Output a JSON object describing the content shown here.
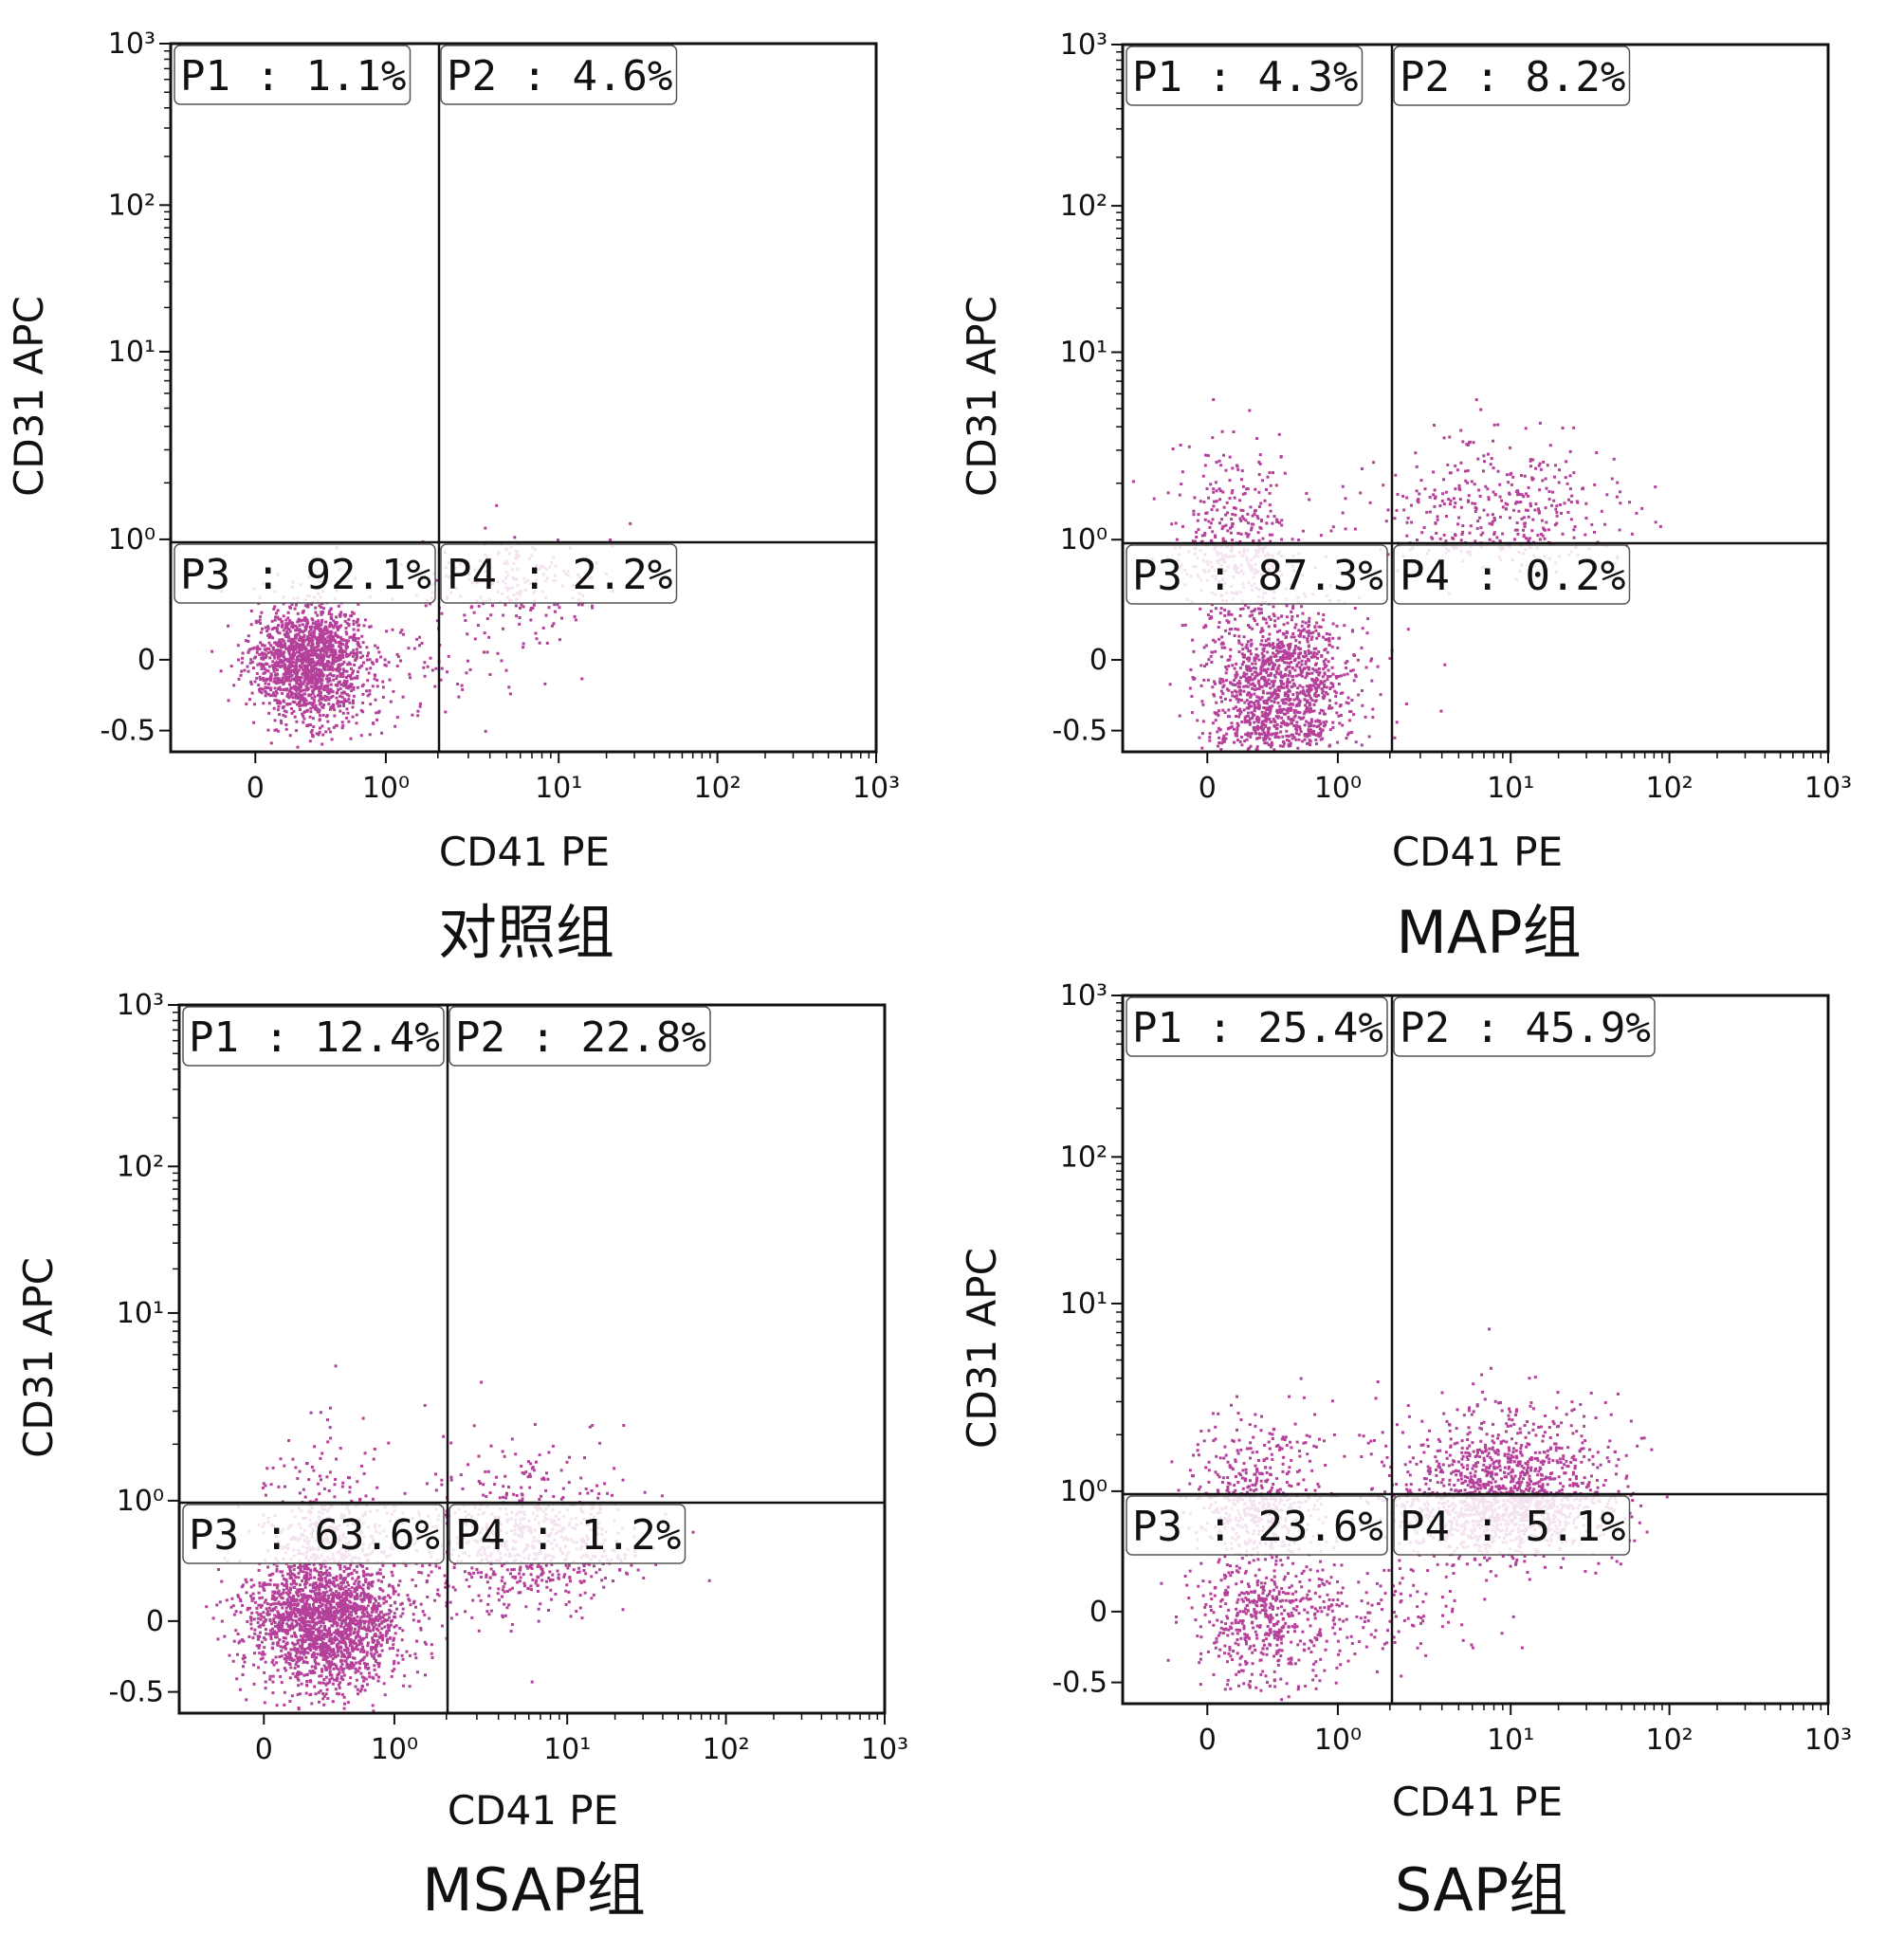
{
  "dot_color": "#b5409a",
  "chart_data": [
    {
      "type": "scatter",
      "group": "对照组",
      "xlabel": "CD41 PE",
      "ylabel": "CD31 APC",
      "x_ticks": [
        "0",
        "10⁰",
        "10¹",
        "10²",
        "10³"
      ],
      "y_ticks": [
        "-0.5",
        "0",
        "10⁰",
        "10¹",
        "10²",
        "10³"
      ],
      "quadrants": {
        "P1": "1.1%",
        "P2": "4.6%",
        "P3": "92.1%",
        "P4": "2.2%"
      },
      "quadrant_labels": [
        "P1 : 1.1%",
        "P2 : 4.6%",
        "P3 : 92.1%",
        "P4 : 2.2%"
      ],
      "clusters": [
        {
          "cx": 0.4,
          "cy": 0.0,
          "sx": 0.22,
          "sy": 0.22,
          "n": 1500
        },
        {
          "cx": 1.75,
          "cy": 0.6,
          "sx": 0.28,
          "sy": 0.25,
          "n": 230
        },
        {
          "cx": 0.9,
          "cy": -0.05,
          "sx": 0.4,
          "sy": 0.2,
          "n": 120
        },
        {
          "cx": 0.5,
          "cy": 0.35,
          "sx": 0.2,
          "sy": 0.25,
          "n": 45
        }
      ]
    },
    {
      "type": "scatter",
      "group": "MAP组",
      "xlabel": "CD41 PE",
      "ylabel": "CD31 APC",
      "x_ticks": [
        "0",
        "10⁰",
        "10¹",
        "10²",
        "10³"
      ],
      "y_ticks": [
        "-0.5",
        "0",
        "10⁰",
        "10¹",
        "10²",
        "10³"
      ],
      "quadrants": {
        "P1": "4.3%",
        "P2": "8.2%",
        "P3": "87.3%",
        "P4": "0.2%"
      },
      "quadrant_labels": [
        "P1 : 4.3%",
        "P2 : 8.2%",
        "P3 : 87.3%",
        "P4 : 0.2%"
      ],
      "clusters": [
        {
          "cx": 0.55,
          "cy": -0.2,
          "sx": 0.28,
          "sy": 0.28,
          "n": 1300
        },
        {
          "cx": 0.2,
          "cy": 1.0,
          "sx": 0.25,
          "sy": 0.27,
          "n": 380
        },
        {
          "cx": 1.95,
          "cy": 1.15,
          "sx": 0.35,
          "sy": 0.2,
          "n": 420
        },
        {
          "cx": 0.4,
          "cy": 0.45,
          "sx": 0.3,
          "sy": 0.25,
          "n": 90
        }
      ]
    },
    {
      "type": "scatter",
      "group": "MSAP组",
      "xlabel": "CD41 PE",
      "ylabel": "CD31 APC",
      "x_ticks": [
        "0",
        "10⁰",
        "10¹",
        "10²",
        "10³"
      ],
      "y_ticks": [
        "-0.5",
        "0",
        "10⁰",
        "10¹",
        "10²",
        "10³"
      ],
      "quadrants": {
        "P1": "12.4%",
        "P2": "22.8%",
        "P3": "63.6%",
        "P4": "1.2%"
      },
      "quadrant_labels": [
        "P1 : 12.4%",
        "P2 : 22.8%",
        "P3 : 63.6%",
        "P4 : 1.2%"
      ],
      "clusters": [
        {
          "cx": 0.45,
          "cy": 0.0,
          "sx": 0.3,
          "sy": 0.25,
          "n": 1900
        },
        {
          "cx": 0.45,
          "cy": 0.65,
          "sx": 0.25,
          "sy": 0.35,
          "n": 480
        },
        {
          "cx": 1.75,
          "cy": 0.7,
          "sx": 0.35,
          "sy": 0.28,
          "n": 720
        },
        {
          "cx": 1.2,
          "cy": 0.1,
          "sx": 0.4,
          "sy": 0.25,
          "n": 40
        }
      ]
    },
    {
      "type": "scatter",
      "group": "SAP组",
      "xlabel": "CD41 PE",
      "ylabel": "CD31 APC",
      "x_ticks": [
        "0",
        "10⁰",
        "10¹",
        "10²",
        "10³"
      ],
      "y_ticks": [
        "-0.5",
        "0",
        "10⁰",
        "10¹",
        "10²",
        "10³"
      ],
      "quadrants": {
        "P1": "25.4%",
        "P2": "45.9%",
        "P3": "23.6%",
        "P4": "5.1%"
      },
      "quadrant_labels": [
        "P1 : 25.4%",
        "P2 : 45.9%",
        "P3 : 23.6%",
        "P4 : 5.1%"
      ],
      "clusters": [
        {
          "cx": 1.95,
          "cy": 0.95,
          "sx": 0.35,
          "sy": 0.25,
          "n": 1500
        },
        {
          "cx": 0.4,
          "cy": 0.9,
          "sx": 0.25,
          "sy": 0.25,
          "n": 550
        },
        {
          "cx": 0.45,
          "cy": -0.05,
          "sx": 0.28,
          "sy": 0.25,
          "n": 520
        },
        {
          "cx": 1.3,
          "cy": 0.05,
          "sx": 0.3,
          "sy": 0.2,
          "n": 110
        }
      ]
    }
  ]
}
